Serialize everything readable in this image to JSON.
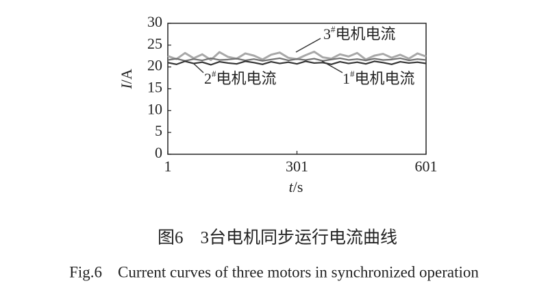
{
  "chart_data": {
    "type": "line",
    "x_label": {
      "var": "t",
      "unit": "/s"
    },
    "y_label": {
      "var": "I",
      "unit": "/A"
    },
    "x": [
      1,
      21,
      41,
      61,
      81,
      101,
      121,
      141,
      161,
      181,
      201,
      221,
      241,
      261,
      281,
      301,
      321,
      341,
      361,
      381,
      401,
      421,
      441,
      461,
      481,
      501,
      521,
      541,
      561,
      581,
      601
    ],
    "xlim": [
      1,
      601
    ],
    "xticks": [
      1,
      301,
      601
    ],
    "ylim": [
      0,
      30
    ],
    "yticks": [
      0,
      5,
      10,
      15,
      20,
      25,
      30
    ],
    "series": [
      {
        "name": "3#电机电流",
        "color": "#a8a8a8",
        "values": [
          22.5,
          21.8,
          23.2,
          22.0,
          22.9,
          21.6,
          23.4,
          22.3,
          21.9,
          23.1,
          22.6,
          21.7,
          22.8,
          23.3,
          22.1,
          21.8,
          22.7,
          23.5,
          22.2,
          21.9,
          22.9,
          22.4,
          23.2,
          21.7,
          22.6,
          23.0,
          22.1,
          22.8,
          21.9,
          23.1,
          22.4
        ]
      },
      {
        "name": "1#电机电流",
        "color": "#707070",
        "values": [
          21.6,
          21.9,
          21.4,
          21.8,
          21.5,
          22.0,
          21.6,
          21.7,
          21.9,
          21.5,
          21.8,
          21.4,
          21.7,
          22.0,
          21.5,
          21.8,
          21.6,
          21.9,
          21.4,
          21.7,
          22.0,
          21.6,
          21.8,
          21.5,
          21.9,
          21.6,
          21.7,
          22.0,
          21.5,
          21.8,
          21.6
        ]
      },
      {
        "name": "2#电机电流",
        "color": "#333333",
        "values": [
          21.0,
          20.6,
          21.3,
          20.8,
          21.1,
          20.5,
          21.2,
          20.9,
          20.7,
          21.3,
          21.0,
          20.6,
          21.2,
          20.8,
          21.1,
          20.7,
          21.3,
          20.9,
          21.0,
          20.6,
          21.2,
          20.8,
          21.1,
          20.7,
          21.3,
          21.0,
          20.6,
          21.2,
          20.9,
          21.1,
          20.8
        ]
      }
    ],
    "annotations": [
      {
        "num": "3",
        "sup": "#",
        "text": "电机电流"
      },
      {
        "num": "1",
        "sup": "#",
        "text": "电机电流"
      },
      {
        "num": "2",
        "sup": "#",
        "text": "电机电流"
      }
    ],
    "caption_zh": "图6　3台电机同步运行电流曲线",
    "caption_en": "Fig.6　Current curves of three motors in synchronized operation"
  }
}
